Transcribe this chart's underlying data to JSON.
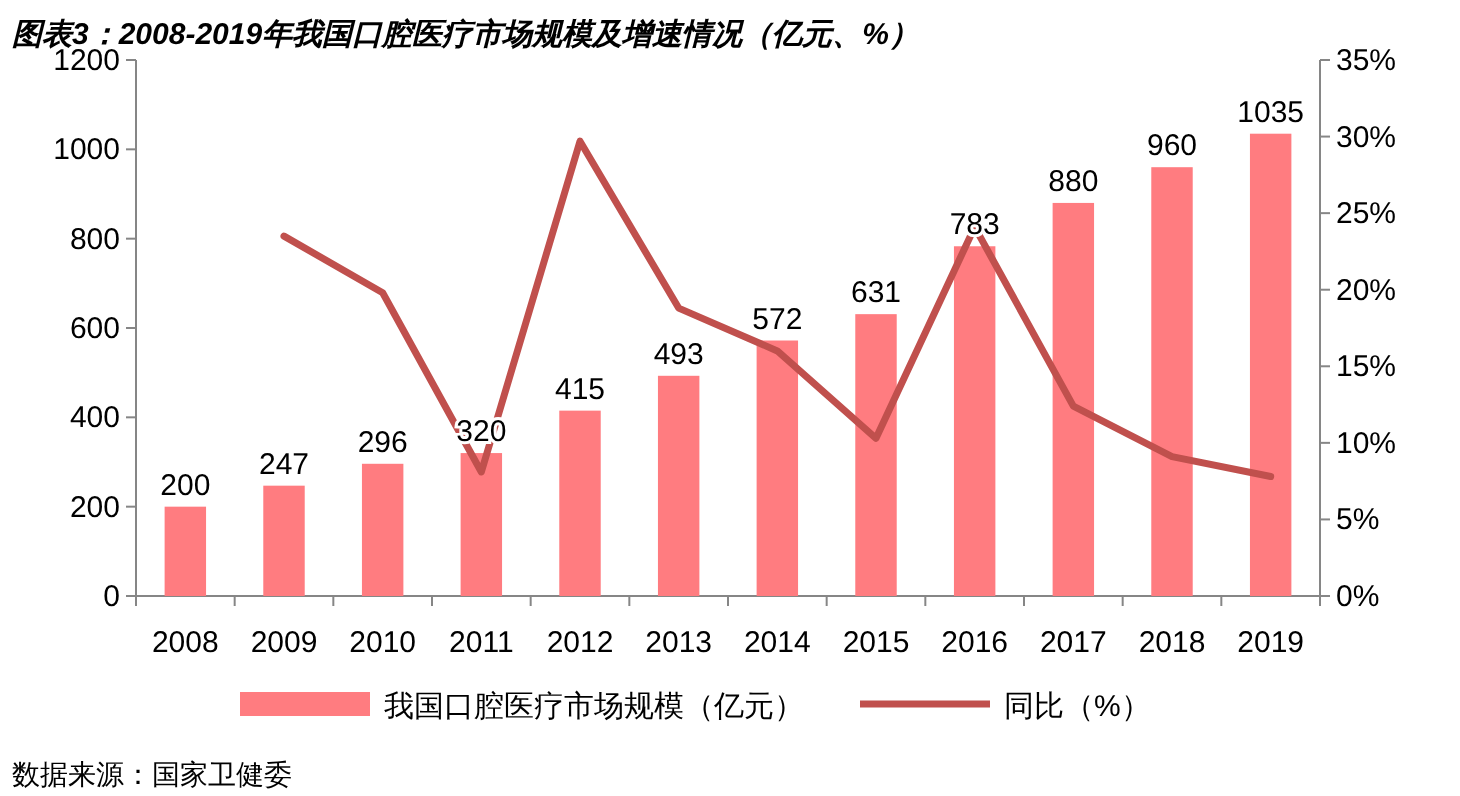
{
  "chart_data": {
    "type": "bar",
    "title": "图表3：2008-2019年我国口腔医疗市场规模及增速情况（亿元、%）",
    "categories": [
      "2008",
      "2009",
      "2010",
      "2011",
      "2012",
      "2013",
      "2014",
      "2015",
      "2016",
      "2017",
      "2018",
      "2019"
    ],
    "series": [
      {
        "name": "我国口腔医疗市场规模（亿元）",
        "color": "#ff7c80",
        "values": [
          200,
          247,
          296,
          320,
          415,
          493,
          572,
          631,
          783,
          880,
          960,
          1035
        ],
        "value_labels": [
          "200",
          "247",
          "296",
          "320",
          "415",
          "493",
          "572",
          "631",
          "783",
          "880",
          "960",
          "1035"
        ]
      },
      {
        "name": "同比（%）",
        "type": "line",
        "axis": "y2",
        "color": "#c0504d",
        "values": [
          null,
          23.5,
          19.8,
          8.1,
          29.7,
          18.8,
          16.0,
          10.3,
          24.1,
          12.4,
          9.1,
          7.8
        ]
      }
    ],
    "ylim": [
      0,
      1200
    ],
    "yticks": [
      0,
      200,
      400,
      600,
      800,
      1000,
      1200
    ],
    "y2lim": [
      0,
      35
    ],
    "y2ticks": [
      {
        "value": 0,
        "label": "0%"
      },
      {
        "value": 5,
        "label": "5%"
      },
      {
        "value": 10,
        "label": "10%"
      },
      {
        "value": 15,
        "label": "15%"
      },
      {
        "value": 20,
        "label": "20%"
      },
      {
        "value": 25,
        "label": "25%"
      },
      {
        "value": 30,
        "label": "30%"
      },
      {
        "value": 35,
        "label": "35%"
      }
    ],
    "legend": "bottom",
    "grid": false,
    "marker": "none",
    "line_style": "solid",
    "annotations": [
      "数据来源：国家卫健委"
    ]
  }
}
